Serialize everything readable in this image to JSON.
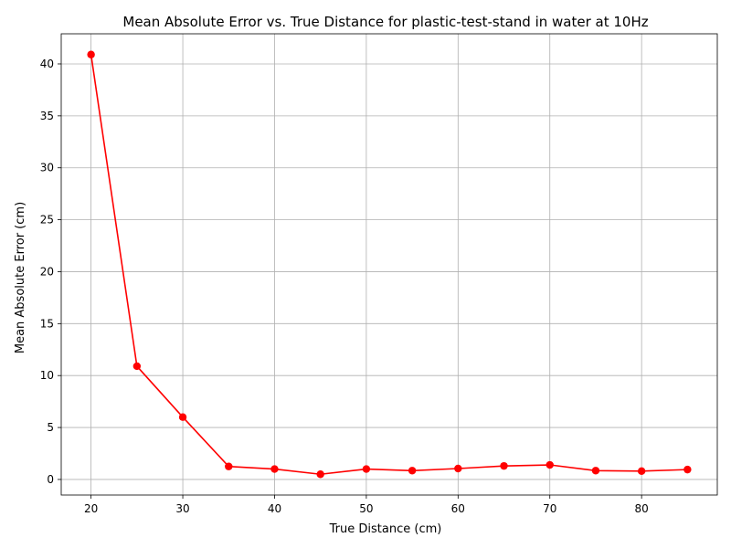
{
  "chart_data": {
    "type": "line",
    "title": "Mean Absolute Error vs. True Distance for plastic-test-stand in water at 10Hz",
    "xlabel": "True Distance (cm)",
    "ylabel": "Mean Absolute Error (cm)",
    "xlim": [
      16.75,
      88.25
    ],
    "ylim": [
      -1.5,
      42.9
    ],
    "xticks": [
      20,
      30,
      40,
      50,
      60,
      70,
      80
    ],
    "yticks": [
      0,
      5,
      10,
      15,
      20,
      25,
      30,
      35,
      40
    ],
    "grid": true,
    "series": [
      {
        "color": "#ff0000",
        "marker": "circle",
        "x": [
          20,
          25,
          30,
          35,
          40,
          45,
          50,
          55,
          60,
          65,
          70,
          75,
          80,
          85
        ],
        "y": [
          40.9,
          10.9,
          6.0,
          1.25,
          1.0,
          0.5,
          1.0,
          0.85,
          1.05,
          1.3,
          1.4,
          0.85,
          0.8,
          0.95
        ]
      }
    ]
  }
}
